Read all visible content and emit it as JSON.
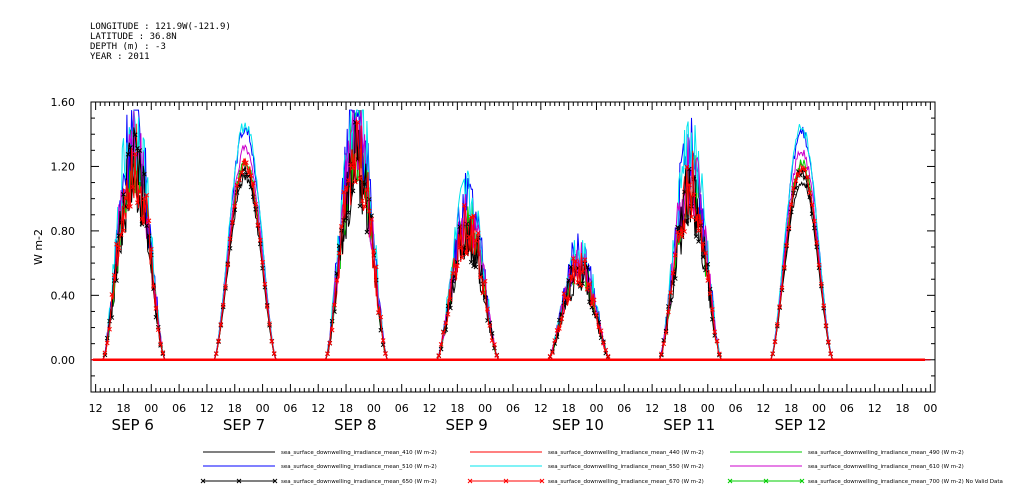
{
  "header": {
    "longitude": "LONGITUDE : 121.9W(-121.9)",
    "latitude": "LATITUDE : 36.8N",
    "depth": "DEPTH (m) : -3",
    "year": "YEAR : 2011"
  },
  "chart_data": {
    "type": "line",
    "ylabel": "W m-2",
    "ylim": [
      -0.2,
      1.6
    ],
    "yticks": [
      "0.00",
      "0.40",
      "0.80",
      "1.20",
      "1.60"
    ],
    "ytick_values": [
      0.0,
      0.4,
      0.8,
      1.2,
      1.6
    ],
    "x_start": "SEP 5 11:00",
    "x_hours_per_day": 24,
    "hour_ticks": [
      "06",
      "12",
      "18",
      "00"
    ],
    "days": [
      "SEP 6",
      "SEP 7",
      "SEP 8",
      "SEP 9",
      "SEP 10",
      "SEP 11",
      "SEP 12"
    ],
    "daily_peaks": [
      {
        "day": "SEP 6",
        "peak": 1.2,
        "shape": "spiky"
      },
      {
        "day": "SEP 7",
        "peak": 1.22,
        "shape": "smooth"
      },
      {
        "day": "SEP 8",
        "peak": 1.25,
        "shape": "spiky"
      },
      {
        "day": "SEP 9",
        "peak": 0.8,
        "shape": "spiky"
      },
      {
        "day": "SEP 10",
        "peak": 0.55,
        "shape": "spiky"
      },
      {
        "day": "SEP 11",
        "peak": 1.05,
        "shape": "spiky"
      },
      {
        "day": "SEP 12",
        "peak": 1.2,
        "shape": "smooth"
      }
    ],
    "series": [
      {
        "name": "sea_surface_downwelling_irradiance_mean_410 (W m-2)",
        "color": "#000000",
        "marker": "none",
        "scale": 0.93
      },
      {
        "name": "sea_surface_downwelling_irradiance_mean_440 (W m-2)",
        "color": "#ff0000",
        "marker": "none",
        "scale": 1.0
      },
      {
        "name": "sea_surface_downwelling_irradiance_mean_490 (W m-2)",
        "color": "#00cc00",
        "marker": "none",
        "scale": 1.02
      },
      {
        "name": "sea_surface_downwelling_irradiance_mean_510 (W m-2)",
        "color": "#0000ff",
        "marker": "none",
        "scale": 1.18
      },
      {
        "name": "sea_surface_downwelling_irradiance_mean_550 (W m-2)",
        "color": "#00e5ee",
        "marker": "none",
        "scale": 1.2
      },
      {
        "name": "sea_surface_downwelling_irradiance_mean_610 (W m-2)",
        "color": "#cc00cc",
        "marker": "none",
        "scale": 1.08
      },
      {
        "name": "sea_surface_downwelling_irradiance_mean_650 (W m-2)",
        "color": "#000000",
        "marker": "x",
        "scale": 0.97
      },
      {
        "name": "sea_surface_downwelling_irradiance_mean_670 (W m-2)",
        "color": "#ff0000",
        "marker": "x",
        "scale": 1.0
      },
      {
        "name": "sea_surface_downwelling_irradiance_mean_700 (W m-2) No Valid Data",
        "color": "#00cc00",
        "marker": "x",
        "scale": 0
      }
    ]
  }
}
